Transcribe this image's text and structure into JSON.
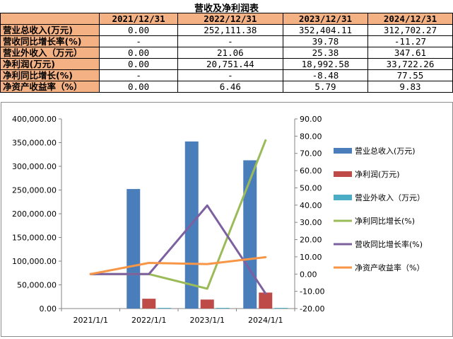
{
  "table": {
    "title": "营收及净利润表",
    "headers": [
      "",
      "2021/12/31",
      "2022/12/31",
      "2023/12/31",
      "2024/12/31"
    ],
    "rows": [
      {
        "label": "营业总收入(万元)",
        "values": [
          "0.00",
          "252,111.38",
          "352,404.11",
          "312,702.27"
        ]
      },
      {
        "label": "营收同比增长率(%)",
        "values": [
          "-",
          "-",
          "39.78",
          "-11.27"
        ]
      },
      {
        "label": "营业外收入（万元）",
        "values": [
          "0.00",
          "21.06",
          "25.38",
          "347.61"
        ]
      },
      {
        "label": "净利润(万元)",
        "values": [
          "0.00",
          "20,751.44",
          "18,992.58",
          "33,722.26"
        ]
      },
      {
        "label": "净利同比增长(%)",
        "values": [
          "-",
          "-",
          "-8.48",
          "77.55"
        ]
      },
      {
        "label": "净资产收益率（%）",
        "values": [
          "0.00",
          "6.46",
          "5.79",
          "9.83"
        ]
      }
    ]
  },
  "chart_data": {
    "type": "bar",
    "categories": [
      "2021/1/1",
      "2022/1/1",
      "2023/1/1",
      "2024/1/1"
    ],
    "left_axis": {
      "min": 0,
      "max": 400000,
      "step": 50000,
      "tick_labels": [
        "0.00",
        "50,000.00",
        "100,000.00",
        "150,000.00",
        "200,000.00",
        "250,000.00",
        "300,000.00",
        "350,000.00",
        "400,000.00"
      ]
    },
    "right_axis": {
      "min": -20,
      "max": 90,
      "step": 10,
      "tick_labels": [
        "-20.00",
        "-10.00",
        "0.00",
        "10.00",
        "20.00",
        "30.00",
        "40.00",
        "50.00",
        "60.00",
        "70.00",
        "80.00",
        "90.00"
      ]
    },
    "bar_series": [
      {
        "name": "营业总收入(万元)",
        "color": "#4a7ebb",
        "values": [
          0,
          252111.38,
          352404.11,
          312702.27
        ]
      },
      {
        "name": "净利润(万元)",
        "color": "#be4b48",
        "values": [
          0,
          20751.44,
          18992.58,
          33722.26
        ]
      },
      {
        "name": "营业外收入（万元）",
        "color": "#4bacc6",
        "values": [
          0,
          21.06,
          25.38,
          347.61
        ]
      }
    ],
    "line_series": [
      {
        "name": "净利同比增长(%)",
        "color": "#9bbb59",
        "values": [
          0,
          0,
          -8.48,
          77.55
        ]
      },
      {
        "name": "营收同比增长率(%)",
        "color": "#7d60a0",
        "values": [
          0,
          0,
          39.78,
          -11.27
        ]
      },
      {
        "name": "净资产收益率（%）",
        "color": "#f79646",
        "values": [
          0,
          6.46,
          5.79,
          9.83
        ]
      }
    ],
    "legend_position": "right"
  }
}
